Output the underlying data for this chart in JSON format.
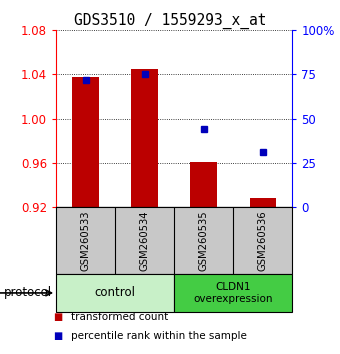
{
  "title": "GDS3510 / 1559293_x_at",
  "samples": [
    "GSM260533",
    "GSM260534",
    "GSM260535",
    "GSM260536"
  ],
  "red_values": [
    1.038,
    1.045,
    0.961,
    0.928
  ],
  "blue_values": [
    72,
    75,
    44,
    31
  ],
  "ylim_left": [
    0.92,
    1.08
  ],
  "ylim_right": [
    0,
    100
  ],
  "yticks_left": [
    0.92,
    0.96,
    1.0,
    1.04,
    1.08
  ],
  "yticks_right": [
    0,
    25,
    50,
    75,
    100
  ],
  "ytick_labels_right": [
    "0",
    "25",
    "50",
    "75",
    "100%"
  ],
  "bar_color": "#bb0000",
  "square_color": "#0000bb",
  "bar_bottom": 0.92,
  "group_control_color": "#c8f0c8",
  "group_cldn1_color": "#44cc44",
  "protocol_label": "protocol",
  "legend_items": [
    {
      "label": "transformed count",
      "color": "#bb0000"
    },
    {
      "label": "percentile rank within the sample",
      "color": "#0000bb"
    }
  ],
  "sample_box_color": "#c8c8c8",
  "bg_color": "#ffffff",
  "title_fontsize": 10.5,
  "tick_fontsize": 8.5,
  "bar_width": 0.45
}
